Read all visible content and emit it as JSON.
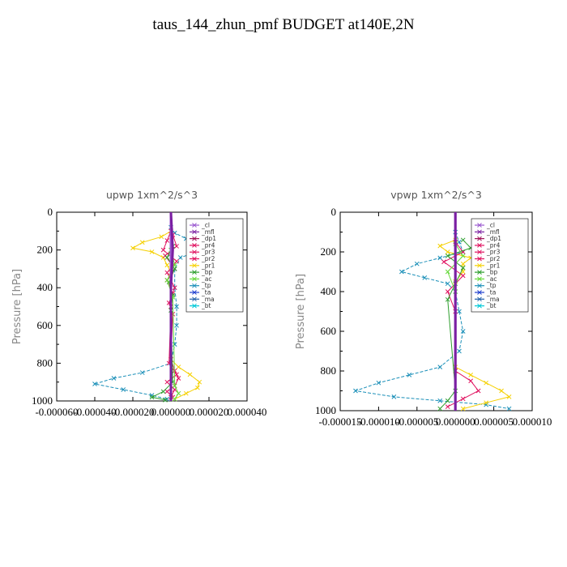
{
  "title": "taus_144_zhun_pmf  BUDGET at140E,2N",
  "colors": {
    "_cl": "#9b59d0",
    "_mfl": "#7b1fa2",
    "_dp1": "#a0145a",
    "_pr4": "#e0115f",
    "_pr3": "#e0115f",
    "_pr2": "#e0115f",
    "_pr1": "#f5d000",
    "_bp": "#2e9e2e",
    "_ac": "#66d93a",
    "_tp": "#1a8fb8",
    "_ta": "#1f3fcf",
    "_ma": "#1f5fa8",
    "_bt": "#00c8d8"
  },
  "chart_data": [
    {
      "type": "line",
      "title": "upwp   1xm^2/s^3",
      "ylabel": "Pressure [hPa]",
      "xlabel": "",
      "xlim": [
        -6e-05,
        4e-05
      ],
      "ylim": [
        1000,
        0
      ],
      "xtick_labels": [
        "-0.000060",
        "-0.000040",
        "-0.000020",
        "0.000000",
        "0.000020",
        "0.000040"
      ],
      "ytick_labels": [
        "0",
        "200",
        "400",
        "600",
        "800",
        "1000"
      ],
      "legend": [
        "_cl",
        "_mfl",
        "_dp1",
        "_pr4",
        "_pr3",
        "_pr2",
        "_pr1",
        "_bp",
        "_ac",
        "_tp",
        "_ta",
        "_ma",
        "_bt"
      ],
      "legend_position": "top-right",
      "series": [
        {
          "name": "_pr1",
          "y": [
            100,
            130,
            160,
            190,
            210,
            240,
            280,
            320,
            780,
            820,
            860,
            900,
            930,
            960,
            990
          ],
          "x": [
            0.0,
            -5e-06,
            -1.5e-05,
            -2e-05,
            -1e-05,
            -4e-06,
            -2e-06,
            0.0,
            0.0,
            4e-06,
            1e-05,
            1.5e-05,
            1.4e-05,
            8e-06,
            2e-06
          ]
        },
        {
          "name": "_tp",
          "y": [
            80,
            110,
            140,
            170,
            190,
            210,
            240,
            300,
            400,
            500,
            600,
            700,
            800,
            850,
            880,
            910,
            940,
            970,
            990
          ],
          "x": [
            0.0,
            2e-06,
            8e-06,
            1.5e-05,
            2e-05,
            1.4e-05,
            5e-06,
            2e-06,
            2e-06,
            3e-06,
            3e-06,
            2e-06,
            0.0,
            -1.5e-05,
            -3e-05,
            -4e-05,
            -2.5e-05,
            -1e-05,
            -2e-06
          ]
        },
        {
          "name": "_pr4",
          "y": [
            100,
            150,
            200,
            260,
            320,
            400,
            480,
            540,
            780,
            840,
            880,
            920,
            950,
            980
          ],
          "x": [
            0.0,
            -2e-06,
            -4e-06,
            3e-06,
            -2e-06,
            2e-06,
            -1e-06,
            1e-06,
            0.0,
            2e-06,
            4e-06,
            2e-06,
            -2e-06,
            1e-06
          ]
        },
        {
          "name": "_pr3",
          "y": [
            120,
            180,
            230,
            300,
            360,
            430,
            500,
            800,
            860,
            900,
            940,
            980
          ],
          "x": [
            1e-06,
            3e-06,
            -3e-06,
            2e-06,
            -2e-06,
            1e-06,
            0.0,
            -1e-06,
            3e-06,
            -2e-06,
            2e-06,
            0.0
          ]
        },
        {
          "name": "_bp",
          "y": [
            180,
            240,
            300,
            370,
            440,
            520,
            900,
            950,
            980,
            995
          ],
          "x": [
            1e-06,
            -2e-06,
            2e-06,
            -1e-06,
            1e-06,
            0.0,
            1e-06,
            -4e-06,
            -1e-05,
            -3e-06
          ]
        },
        {
          "name": "_ac",
          "y": [
            200,
            280,
            360,
            450,
            920,
            960,
            990
          ],
          "x": [
            0.0,
            2e-06,
            -2e-06,
            1e-06,
            2e-06,
            4e-06,
            2e-06
          ]
        },
        {
          "name": "_cl",
          "y": [
            0,
            200,
            400,
            600,
            800,
            1000
          ],
          "x": [
            0.0,
            0.0,
            0.0,
            0.0,
            0.0,
            0.0
          ]
        },
        {
          "name": "_mfl",
          "y": [
            0,
            200,
            400,
            600,
            800,
            1000
          ],
          "x": [
            0.0,
            1e-06,
            0.0,
            0.0,
            0.0,
            0.0
          ]
        }
      ]
    },
    {
      "type": "line",
      "title": "vpwp   1xm^2/s^3",
      "ylabel": "Pressure [hPa]",
      "xlabel": "",
      "xlim": [
        -1.5e-05,
        1e-05
      ],
      "ylim": [
        1000,
        0
      ],
      "xtick_labels": [
        "-0.000015",
        "-0.000010",
        "-0.000005",
        "0.000000",
        "0.000005",
        "0.000010"
      ],
      "ytick_labels": [
        "0",
        "200",
        "400",
        "600",
        "800",
        "1000"
      ],
      "legend": [
        "_cl",
        "_mfl",
        "_dp1",
        "_pr4",
        "_pr3",
        "_pr2",
        "_pr1",
        "_bp",
        "_ac",
        "_tp",
        "_ta",
        "_ma",
        "_bt"
      ],
      "legend_position": "top-right",
      "series": [
        {
          "name": "_tp",
          "y": [
            100,
            150,
            200,
            230,
            260,
            300,
            330,
            360,
            400,
            500,
            600,
            700,
            780,
            820,
            860,
            900,
            930,
            950,
            970,
            990
          ],
          "x": [
            0.0,
            5e-07,
            1e-06,
            -2e-06,
            -5e-06,
            -7e-06,
            -4e-06,
            -1e-06,
            0.0,
            5e-07,
            1e-06,
            5e-07,
            -2e-06,
            -6e-06,
            -1e-05,
            -1.3e-05,
            -8e-06,
            -2e-06,
            4e-06,
            7e-06
          ]
        },
        {
          "name": "_pr1",
          "y": [
            140,
            170,
            200,
            230,
            260,
            300,
            350,
            780,
            820,
            860,
            900,
            930,
            960,
            990
          ],
          "x": [
            0.0,
            -2e-06,
            -1e-06,
            2e-06,
            1e-06,
            1e-06,
            0.0,
            0.0,
            2e-06,
            4e-06,
            6e-06,
            7e-06,
            4e-06,
            1e-06
          ]
        },
        {
          "name": "_pr4",
          "y": [
            150,
            200,
            250,
            320,
            400,
            500,
            800,
            850,
            900,
            940,
            980
          ],
          "x": [
            0.0,
            1e-06,
            -1.5e-06,
            1e-06,
            -1e-06,
            0.0,
            0.0,
            2e-06,
            3e-06,
            1e-06,
            -1e-06
          ]
        },
        {
          "name": "_bp",
          "y": [
            140,
            180,
            220,
            280,
            360,
            440,
            900,
            950,
            990
          ],
          "x": [
            1e-06,
            2e-06,
            -1e-06,
            1e-06,
            0.0,
            -1e-06,
            0.0,
            -1e-06,
            -2e-06
          ]
        },
        {
          "name": "_ac",
          "y": [
            160,
            220,
            300,
            400
          ],
          "x": [
            0.0,
            1e-06,
            -1e-06,
            0.0
          ]
        },
        {
          "name": "_cl",
          "y": [
            0,
            200,
            400,
            600,
            800,
            1000
          ],
          "x": [
            0.0,
            0.0,
            0.0,
            0.0,
            0.0,
            0.0
          ]
        },
        {
          "name": "_mfl",
          "y": [
            0,
            200,
            400,
            600,
            800,
            1000
          ],
          "x": [
            0.0,
            0.0,
            0.0,
            0.0,
            0.0,
            0.0
          ]
        }
      ]
    }
  ]
}
